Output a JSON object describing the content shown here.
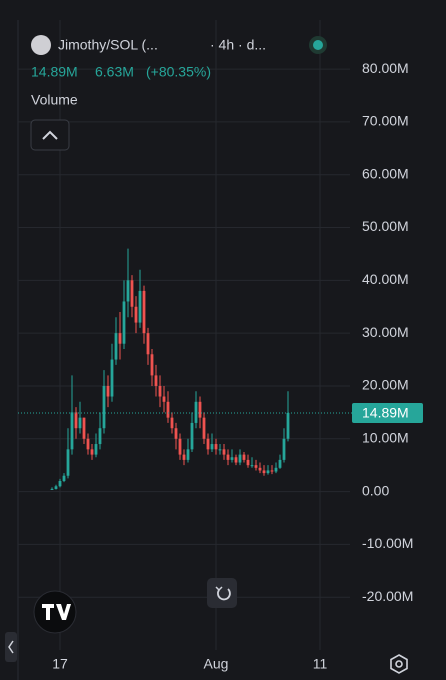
{
  "header": {
    "title": "Jimothy/SOL (...",
    "interval": "· 4h · d...",
    "price": "14.89M",
    "change": "6.63M",
    "change_pct": "(+80.35%)",
    "indicator": "Volume"
  },
  "chart_data": {
    "type": "candlestick",
    "open": [
      0.4,
      0.5,
      1,
      2,
      3,
      8,
      15,
      12,
      14,
      10,
      8,
      7,
      9,
      12,
      20,
      18,
      25,
      30,
      28,
      36,
      40,
      35,
      32,
      38,
      30,
      26,
      22,
      20,
      18,
      17,
      14,
      12,
      10,
      7,
      6,
      8,
      13,
      17,
      14,
      10,
      8,
      9,
      8,
      8,
      7,
      6,
      6.5,
      5.5,
      7,
      6,
      5,
      5,
      4.5,
      4,
      3.5,
      4,
      3.8,
      4.5,
      6,
      10
    ],
    "high": [
      0.8,
      1.3,
      2.4,
      3.5,
      12,
      22,
      16,
      17,
      14,
      11,
      9,
      11,
      15,
      23,
      22,
      28,
      33,
      34,
      40,
      46,
      41,
      37,
      42,
      39,
      31,
      27,
      24,
      22,
      20,
      19,
      15,
      13,
      11,
      8,
      10,
      15,
      19,
      18,
      15,
      11,
      11,
      10,
      9,
      9,
      8,
      8,
      7,
      8,
      7.5,
      7,
      6.5,
      6,
      5.5,
      5,
      5,
      5,
      5.5,
      7,
      12,
      19
    ],
    "low": [
      0.3,
      0.4,
      0.8,
      1.8,
      2.5,
      7,
      10,
      11,
      9,
      7,
      6,
      6.5,
      8,
      11,
      16,
      17,
      24,
      25,
      27,
      33,
      33,
      30,
      31,
      28,
      24,
      20,
      18,
      16,
      15,
      13,
      11,
      8,
      6,
      5,
      5.5,
      7.5,
      12,
      12,
      9,
      7,
      7.5,
      7,
      7,
      6,
      5,
      5.5,
      5,
      5,
      5.5,
      4.5,
      4.5,
      4,
      3.5,
      3,
      3.2,
      3.3,
      3.5,
      4.3,
      5.5,
      9.5
    ],
    "close": [
      0.5,
      1,
      2,
      3,
      8,
      15,
      12,
      14,
      10,
      8,
      7,
      9,
      12,
      20,
      18,
      25,
      30,
      28,
      36,
      40,
      35,
      32,
      38,
      30,
      26,
      22,
      20,
      18,
      17,
      14,
      12,
      10,
      7,
      6,
      8,
      13,
      17,
      14,
      10,
      8,
      9,
      8,
      8,
      7,
      6,
      6.5,
      5.5,
      7,
      6,
      5,
      5,
      4.5,
      4,
      3.5,
      4,
      3.8,
      4.5,
      6,
      10,
      14.89
    ],
    "up_color": "#26a69a",
    "down_color": "#ef5350",
    "last_price_label": "14.89M",
    "ylim": [
      -30,
      89.3
    ],
    "yticks": [
      {
        "value": 80,
        "label": "80.00M"
      },
      {
        "value": 70,
        "label": "70.00M"
      },
      {
        "value": 60,
        "label": "60.00M"
      },
      {
        "value": 50,
        "label": "50.00M"
      },
      {
        "value": 40,
        "label": "40.00M"
      },
      {
        "value": 30,
        "label": "30.00M"
      },
      {
        "value": 20,
        "label": "20.00M"
      },
      {
        "value": 10,
        "label": "10.00M"
      },
      {
        "value": 0,
        "label": "0.00"
      },
      {
        "value": -10,
        "label": "-10.00M"
      },
      {
        "value": -20,
        "label": "-20.00M"
      }
    ],
    "xlim": [
      -8.5,
      74.5
    ],
    "xticks": [
      {
        "value": 2,
        "label": "17"
      },
      {
        "value": 41,
        "label": "Aug"
      },
      {
        "value": 67,
        "label": "11"
      }
    ],
    "grid": true
  }
}
